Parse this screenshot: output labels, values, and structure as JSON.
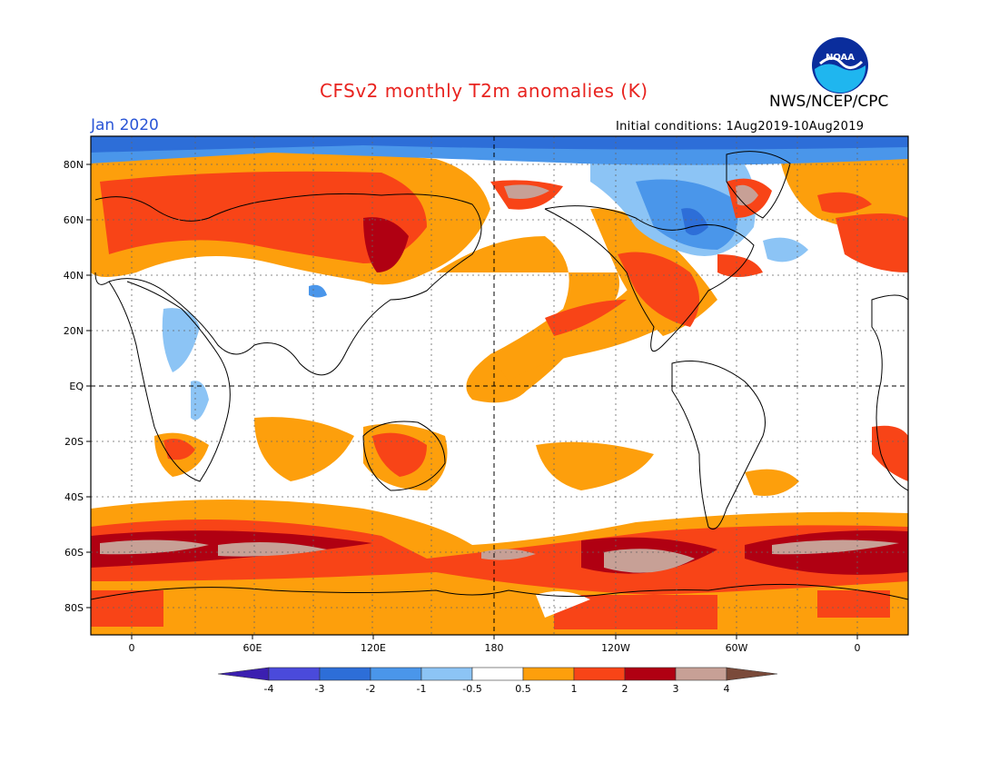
{
  "title": "CFSv2 monthly T2m anomalies (K)",
  "agency": "NWS/NCEP/CPC",
  "logo_text": "NOAA",
  "forecast_month": "Jan 2020",
  "initial_conditions": "Initial conditions: 1Aug2019-10Aug2019",
  "lat_labels": [
    "80N",
    "60N",
    "40N",
    "20N",
    "EQ",
    "20S",
    "40S",
    "60S",
    "80S"
  ],
  "lon_labels": [
    "0",
    "60E",
    "120E",
    "180",
    "120W",
    "60W",
    "0"
  ],
  "colorbar": {
    "labels": [
      "-4",
      "-3",
      "-2",
      "-1",
      "-0.5",
      "0.5",
      "1",
      "2",
      "3",
      "4"
    ],
    "colors": [
      "#3b1fb0",
      "#4a4adb",
      "#2d6ed8",
      "#4a96ea",
      "#8cc4f5",
      "#ffffff",
      "#fd9f0c",
      "#f84417",
      "#b00012",
      "#c7a096",
      "#7a4a3a"
    ]
  }
}
